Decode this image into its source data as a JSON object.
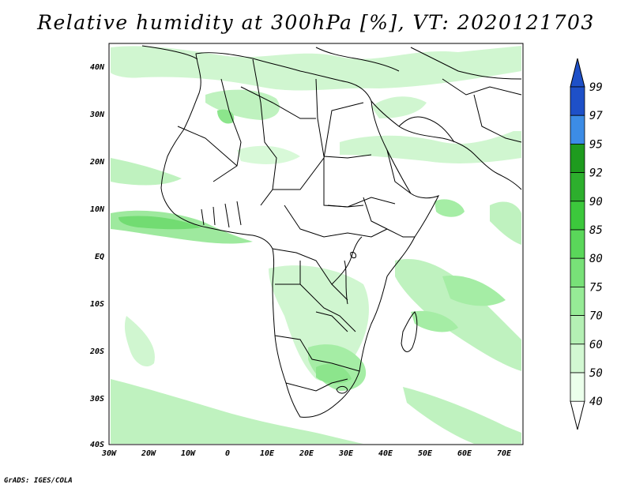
{
  "title": "Relative humidity at 300hPa [%], VT: 2020121703",
  "credit": "GrADS: IGES/COLA",
  "map": {
    "lon_labels": [
      "30W",
      "20W",
      "10W",
      "0",
      "10E",
      "20E",
      "30E",
      "40E",
      "50E",
      "60E",
      "70E"
    ],
    "lat_labels": [
      "40N",
      "30N",
      "20N",
      "10N",
      "EQ",
      "10S",
      "20S",
      "30S",
      "40S"
    ],
    "lon_range": [
      -30,
      75
    ],
    "lat_range": [
      -40,
      44
    ]
  },
  "colorbar": {
    "levels": [
      "99",
      "97",
      "95",
      "92",
      "90",
      "85",
      "80",
      "75",
      "70",
      "60",
      "50",
      "40"
    ],
    "colors": [
      "#1e50c8",
      "#3c8ce6",
      "#1e9b1e",
      "#2daf2d",
      "#3cc83c",
      "#5ad75a",
      "#78e178",
      "#96eb96",
      "#b4f0b4",
      "#d2f8d2",
      "#ebffeb",
      "#ffffff"
    ]
  }
}
